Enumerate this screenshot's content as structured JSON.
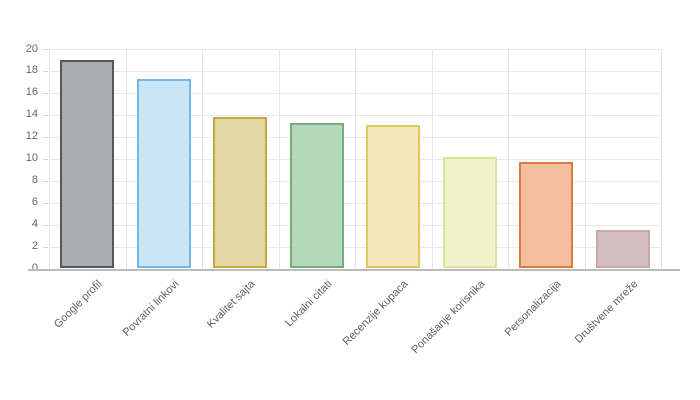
{
  "chart_data": {
    "type": "bar",
    "title": "",
    "xlabel": "",
    "ylabel": "",
    "legend": "none",
    "grid": true,
    "ylim": [
      0,
      20
    ],
    "ytick_step": 2,
    "yticks": [
      0,
      2,
      4,
      6,
      8,
      10,
      12,
      14,
      16,
      18,
      20
    ],
    "categories": [
      "Google profil",
      "Povratni linkovi",
      "Kvalitet sajta",
      "Lokalni citati",
      "Recenzije kupaca",
      "Ponašanje korisnika",
      "Personalizacija",
      "Društvene mreže"
    ],
    "values": [
      19,
      17.3,
      13.8,
      13.3,
      13.1,
      10.2,
      9.7,
      3.5
    ],
    "bar_colors": [
      {
        "fill": "#aaaeb3",
        "border": "#54595f"
      },
      {
        "fill": "#cbe5f7",
        "border": "#72b8e4"
      },
      {
        "fill": "#e4d7a5",
        "border": "#c3ab41"
      },
      {
        "fill": "#b5d8bb",
        "border": "#74ac7f"
      },
      {
        "fill": "#f4e7b7",
        "border": "#e2c75f"
      },
      {
        "fill": "#eff3ca",
        "border": "#dce29d"
      },
      {
        "fill": "#f3bf9e",
        "border": "#d87c42"
      },
      {
        "fill": "#d5bdbd",
        "border": "#c5a8a8"
      }
    ],
    "colors": {
      "background": "#ffffff",
      "h_grid": "#e9e9e9",
      "v_grid": "#e6e6e6",
      "axis_line": "#bcbcbc",
      "tick_dash": "#d4d4d4",
      "tick_text": "#666666",
      "category_text": "#5f5f5f"
    }
  }
}
